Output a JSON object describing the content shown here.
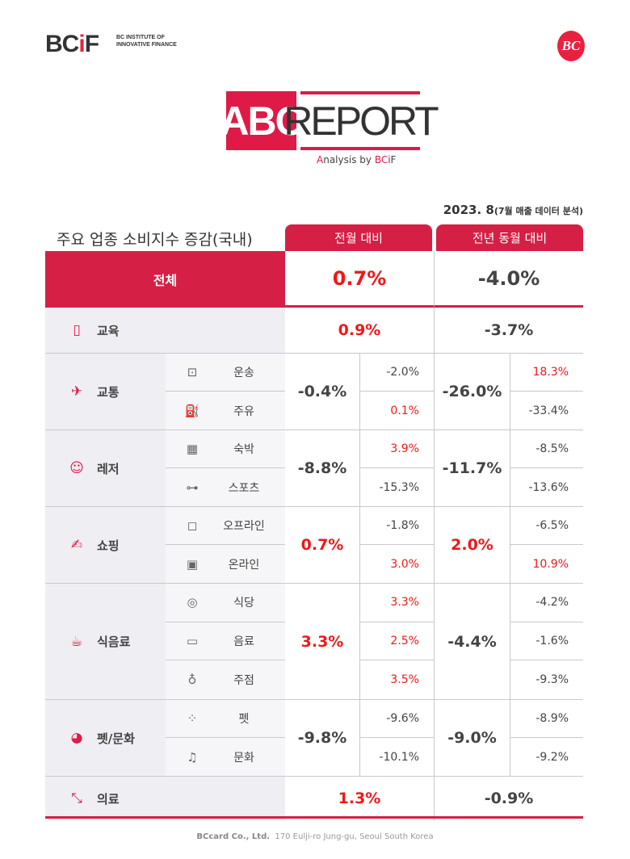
{
  "header": {
    "logo": "BCiF",
    "logo_sub": "BC INSTITUTE OF INNOVATIVE FINANCE",
    "badge": "BC",
    "title_a": "ABC",
    "title_b": "REPORT",
    "analysis_a": "A",
    "analysis_b": "nalysis by ",
    "analysis_c": "BC",
    "analysis_d": "iF"
  },
  "date": {
    "main": "2023. 8",
    "note": "(7월 매출 데이터 분석)"
  },
  "table": {
    "title": "주요 업종 소비지수 증감(국내)",
    "col_month": "전월 대비",
    "col_year": "전년 동월 대비",
    "total": {
      "label": "전체",
      "month": "0.7%",
      "year": "-4.0%"
    },
    "colors": {
      "accent": "#d61f45",
      "positive": "#f01818",
      "text": "#444444"
    },
    "groups": [
      {
        "label": "교육",
        "icon": "notebook-icon",
        "month": "0.9%",
        "year": "-3.7%",
        "subs": []
      },
      {
        "label": "교통",
        "icon": "airplane-icon",
        "month": "-0.4%",
        "year": "-26.0%",
        "subs": [
          {
            "label": "운송",
            "icon": "train-icon",
            "month": "-2.0%",
            "year": "18.3%"
          },
          {
            "label": "주유",
            "icon": "fuel-pump-icon",
            "month": "0.1%",
            "year": "-33.4%"
          }
        ]
      },
      {
        "label": "레저",
        "icon": "smiley-icon",
        "month": "-8.8%",
        "year": "-11.7%",
        "subs": [
          {
            "label": "숙박",
            "icon": "building-icon",
            "month": "3.9%",
            "year": "-8.5%"
          },
          {
            "label": "스포츠",
            "icon": "dumbbell-icon",
            "month": "-15.3%",
            "year": "-13.6%"
          }
        ]
      },
      {
        "label": "쇼핑",
        "icon": "card-hand-icon",
        "month": "0.7%",
        "year": "2.0%",
        "subs": [
          {
            "label": "오프라인",
            "icon": "shopping-bag-icon",
            "month": "-1.8%",
            "year": "-6.5%"
          },
          {
            "label": "온라인",
            "icon": "mobile-shop-icon",
            "month": "3.0%",
            "year": "10.9%"
          }
        ]
      },
      {
        "label": "식음료",
        "icon": "burger-drink-icon",
        "month": "3.3%",
        "year": "-4.4%",
        "subs": [
          {
            "label": "식당",
            "icon": "plate-icon",
            "month": "3.3%",
            "year": "-4.2%"
          },
          {
            "label": "음료",
            "icon": "coffee-cup-icon",
            "month": "2.5%",
            "year": "-1.6%"
          },
          {
            "label": "주점",
            "icon": "wine-bucket-icon",
            "month": "3.5%",
            "year": "-9.3%"
          }
        ]
      },
      {
        "label": "펫/문화",
        "icon": "dog-icon",
        "month": "-9.8%",
        "year": "-9.0%",
        "subs": [
          {
            "label": "펫",
            "icon": "paw-icon",
            "month": "-9.6%",
            "year": "-8.9%"
          },
          {
            "label": "문화",
            "icon": "music-note-icon",
            "month": "-10.1%",
            "year": "-9.2%"
          }
        ]
      },
      {
        "label": "의료",
        "icon": "syringe-icon",
        "month": "1.3%",
        "year": "-0.9%",
        "subs": []
      }
    ]
  },
  "footer": {
    "company": "BCcard Co., Ltd.",
    "address": "170 Eulji-ro Jung-gu, Seoul South Korea"
  }
}
